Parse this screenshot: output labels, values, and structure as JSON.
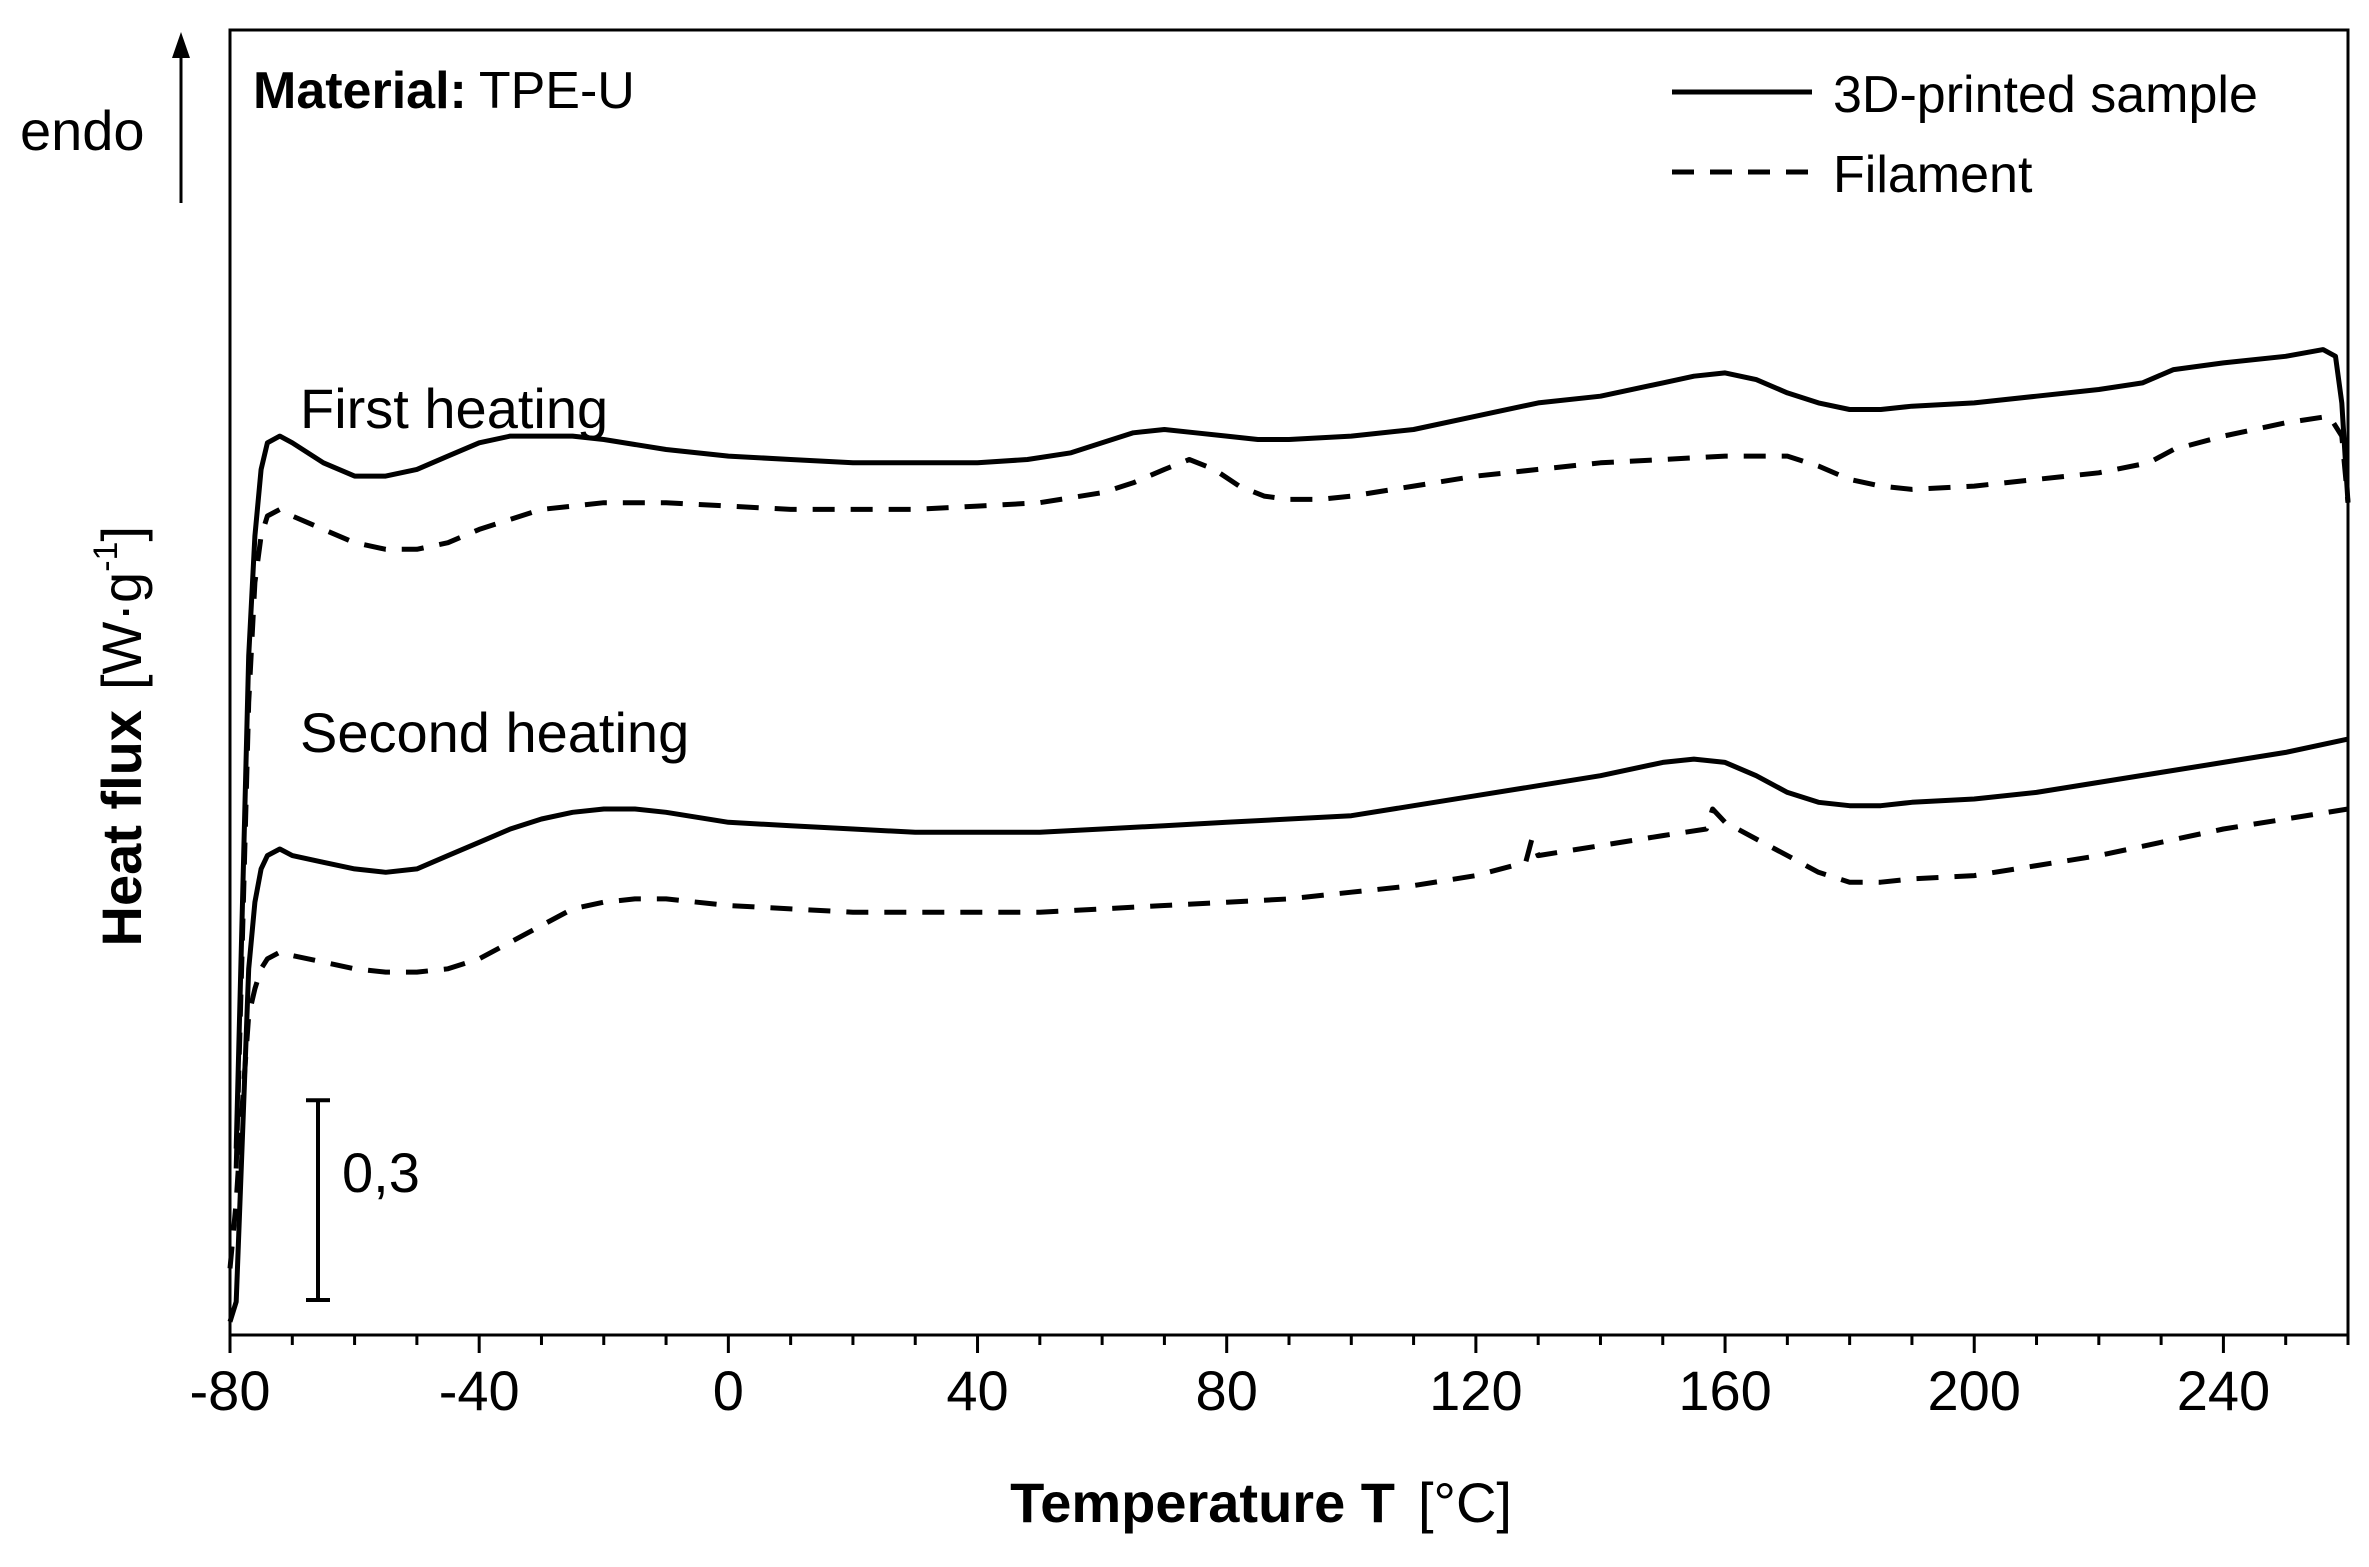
{
  "chart_data": {
    "type": "line",
    "title": "",
    "material": {
      "label": "Material:",
      "value": "TPE-U"
    },
    "xlabel": "Temperature T",
    "xunit": "[°C]",
    "ylabel": "Heat flux",
    "yunit_pre": "[W·g",
    "yunit_exp": "-1",
    "yunit_post": "]",
    "endo_label": "endo",
    "xlim": [
      -80,
      260
    ],
    "ylim": [
      0,
      1.96
    ],
    "xticks": [
      -80,
      -40,
      0,
      40,
      80,
      120,
      160,
      200,
      240
    ],
    "xtick_labels": [
      "-80",
      "-40",
      "0",
      "40",
      "80",
      "120",
      "160",
      "200",
      "240"
    ],
    "grid": false,
    "legend_position": "top-right",
    "legend": [
      {
        "label": "3D-printed sample",
        "style": "solid"
      },
      {
        "label": "Filament",
        "style": "dashed"
      }
    ],
    "annotations": {
      "first_heating": "First heating",
      "second_heating": "Second heating",
      "scale_bar_label": "0,3",
      "scale_bar_value": 0.3
    },
    "series": [
      {
        "name": "3D-printed sample (first heating)",
        "group": "First heating",
        "style": "solid",
        "x": [
          -79,
          -78,
          -77,
          -76,
          -75,
          -74,
          -72,
          -70,
          -65,
          -60,
          -55,
          -50,
          -45,
          -40,
          -35,
          -30,
          -25,
          -20,
          -10,
          0,
          10,
          20,
          30,
          40,
          48,
          55,
          60,
          65,
          70,
          75,
          80,
          85,
          90,
          100,
          110,
          120,
          130,
          140,
          150,
          155,
          160,
          165,
          170,
          175,
          180,
          185,
          190,
          200,
          210,
          220,
          227,
          232,
          240,
          250,
          256,
          258,
          259,
          260
        ],
        "values": [
          0.28,
          0.65,
          1.02,
          1.2,
          1.3,
          1.34,
          1.35,
          1.34,
          1.31,
          1.29,
          1.29,
          1.3,
          1.32,
          1.34,
          1.35,
          1.35,
          1.35,
          1.345,
          1.33,
          1.32,
          1.315,
          1.31,
          1.31,
          1.31,
          1.315,
          1.325,
          1.34,
          1.355,
          1.36,
          1.355,
          1.35,
          1.345,
          1.345,
          1.35,
          1.36,
          1.38,
          1.4,
          1.41,
          1.43,
          1.44,
          1.445,
          1.435,
          1.415,
          1.4,
          1.39,
          1.39,
          1.395,
          1.4,
          1.41,
          1.42,
          1.43,
          1.45,
          1.46,
          1.47,
          1.48,
          1.47,
          1.4,
          1.25
        ]
      },
      {
        "name": "Filament (first heating)",
        "group": "First heating",
        "style": "dashed",
        "x": [
          -79,
          -78,
          -77,
          -76,
          -75,
          -74,
          -72,
          -70,
          -65,
          -60,
          -55,
          -50,
          -45,
          -40,
          -35,
          -30,
          -25,
          -20,
          -10,
          0,
          10,
          20,
          30,
          40,
          50,
          60,
          65,
          70,
          74,
          78,
          82,
          86,
          90,
          95,
          100,
          110,
          120,
          130,
          140,
          150,
          160,
          170,
          175,
          180,
          185,
          190,
          200,
          210,
          220,
          228,
          232,
          240,
          250,
          257,
          259,
          260
        ],
        "values": [
          0.25,
          0.6,
          0.95,
          1.13,
          1.2,
          1.23,
          1.24,
          1.23,
          1.21,
          1.19,
          1.18,
          1.18,
          1.19,
          1.21,
          1.225,
          1.24,
          1.245,
          1.25,
          1.25,
          1.245,
          1.24,
          1.24,
          1.24,
          1.245,
          1.25,
          1.265,
          1.28,
          1.3,
          1.315,
          1.3,
          1.275,
          1.26,
          1.255,
          1.255,
          1.26,
          1.275,
          1.29,
          1.3,
          1.31,
          1.315,
          1.32,
          1.32,
          1.305,
          1.285,
          1.275,
          1.27,
          1.275,
          1.285,
          1.295,
          1.31,
          1.33,
          1.35,
          1.37,
          1.38,
          1.35,
          1.25
        ]
      },
      {
        "name": "3D-printed sample (second heating)",
        "group": "Second heating",
        "style": "solid",
        "x": [
          -80,
          -79,
          -78,
          -77,
          -76,
          -75,
          -74,
          -72,
          -70,
          -65,
          -60,
          -55,
          -50,
          -45,
          -40,
          -35,
          -30,
          -25,
          -20,
          -15,
          -10,
          0,
          10,
          20,
          30,
          40,
          50,
          60,
          70,
          80,
          90,
          100,
          110,
          120,
          130,
          140,
          150,
          155,
          160,
          165,
          170,
          175,
          180,
          185,
          190,
          200,
          210,
          220,
          230,
          240,
          250,
          260
        ],
        "values": [
          0.02,
          0.05,
          0.3,
          0.55,
          0.65,
          0.7,
          0.72,
          0.73,
          0.72,
          0.71,
          0.7,
          0.695,
          0.7,
          0.72,
          0.74,
          0.76,
          0.775,
          0.785,
          0.79,
          0.79,
          0.785,
          0.77,
          0.765,
          0.76,
          0.755,
          0.755,
          0.755,
          0.76,
          0.765,
          0.77,
          0.775,
          0.78,
          0.795,
          0.81,
          0.825,
          0.84,
          0.86,
          0.865,
          0.86,
          0.84,
          0.815,
          0.8,
          0.795,
          0.795,
          0.8,
          0.805,
          0.815,
          0.83,
          0.845,
          0.86,
          0.875,
          0.895
        ]
      },
      {
        "name": "Filament (second heating)",
        "group": "Second heating",
        "style": "dashed",
        "x": [
          -80,
          -79,
          -78,
          -77,
          -76,
          -75,
          -74,
          -72,
          -70,
          -65,
          -60,
          -55,
          -50,
          -45,
          -40,
          -35,
          -30,
          -25,
          -20,
          -15,
          -10,
          0,
          10,
          20,
          30,
          40,
          50,
          60,
          70,
          80,
          90,
          100,
          110,
          120,
          128,
          129,
          130,
          140,
          150,
          157,
          158,
          160,
          165,
          170,
          175,
          180,
          185,
          190,
          200,
          210,
          220,
          230,
          240,
          250,
          260
        ],
        "values": [
          0.1,
          0.2,
          0.35,
          0.48,
          0.52,
          0.55,
          0.565,
          0.575,
          0.57,
          0.56,
          0.55,
          0.545,
          0.545,
          0.55,
          0.565,
          0.59,
          0.615,
          0.64,
          0.65,
          0.655,
          0.655,
          0.645,
          0.64,
          0.635,
          0.635,
          0.635,
          0.635,
          0.64,
          0.645,
          0.65,
          0.655,
          0.665,
          0.675,
          0.69,
          0.71,
          0.745,
          0.72,
          0.735,
          0.75,
          0.76,
          0.79,
          0.77,
          0.745,
          0.72,
          0.695,
          0.68,
          0.68,
          0.685,
          0.69,
          0.705,
          0.72,
          0.74,
          0.76,
          0.775,
          0.79
        ]
      }
    ]
  }
}
